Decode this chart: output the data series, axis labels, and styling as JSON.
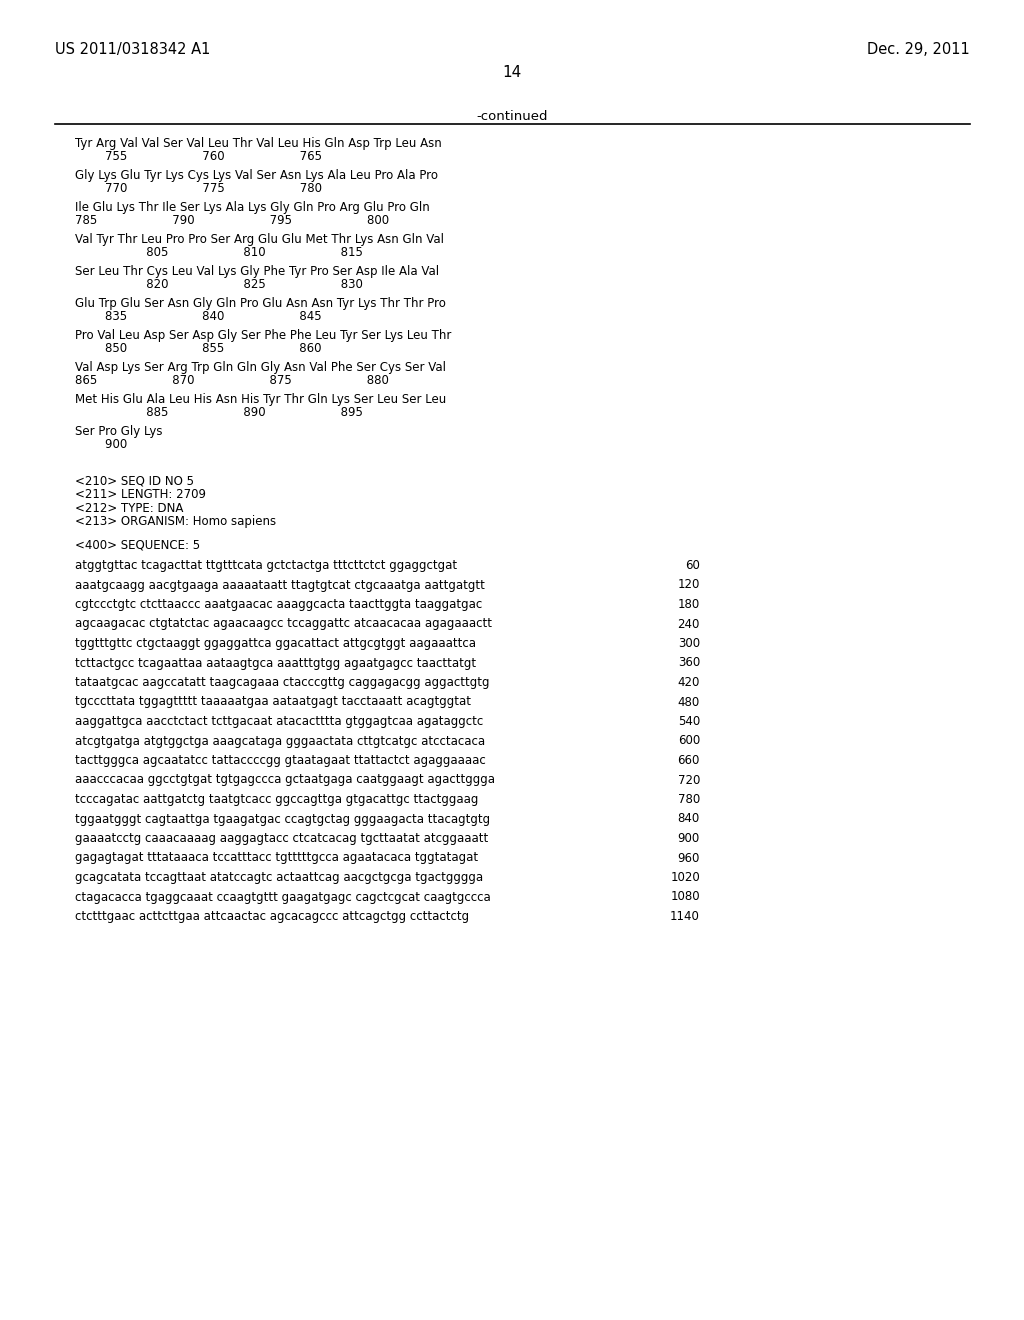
{
  "header_left": "US 2011/0318342 A1",
  "header_right": "Dec. 29, 2011",
  "page_number": "14",
  "continued_label": "-continued",
  "bg_color": "#ffffff",
  "text_color": "#000000",
  "amino_acid_blocks": [
    {
      "seq": "Tyr Arg Val Val Ser Val Leu Thr Val Leu His Gln Asp Trp Leu Asn",
      "num": "        755                    760                    765"
    },
    {
      "seq": "Gly Lys Glu Tyr Lys Cys Lys Val Ser Asn Lys Ala Leu Pro Ala Pro",
      "num": "        770                    775                    780"
    },
    {
      "seq": "Ile Glu Lys Thr Ile Ser Lys Ala Lys Gly Gln Pro Arg Glu Pro Gln",
      "num": "785                    790                    795                    800"
    },
    {
      "seq": "Val Tyr Thr Leu Pro Pro Ser Arg Glu Glu Met Thr Lys Asn Gln Val",
      "num": "                   805                    810                    815"
    },
    {
      "seq": "Ser Leu Thr Cys Leu Val Lys Gly Phe Tyr Pro Ser Asp Ile Ala Val",
      "num": "                   820                    825                    830"
    },
    {
      "seq": "Glu Trp Glu Ser Asn Gly Gln Pro Glu Asn Asn Tyr Lys Thr Thr Pro",
      "num": "        835                    840                    845"
    },
    {
      "seq": "Pro Val Leu Asp Ser Asp Gly Ser Phe Phe Leu Tyr Ser Lys Leu Thr",
      "num": "        850                    855                    860"
    },
    {
      "seq": "Val Asp Lys Ser Arg Trp Gln Gln Gly Asn Val Phe Ser Cys Ser Val",
      "num": "865                    870                    875                    880"
    },
    {
      "seq": "Met His Glu Ala Leu His Asn His Tyr Thr Gln Lys Ser Leu Ser Leu",
      "num": "                   885                    890                    895"
    },
    {
      "seq": "Ser Pro Gly Lys",
      "num": "        900"
    }
  ],
  "seq_info_lines": [
    "<210> SEQ ID NO 5",
    "<211> LENGTH: 2709",
    "<212> TYPE: DNA",
    "<213> ORGANISM: Homo sapiens"
  ],
  "seq_label": "<400> SEQUENCE: 5",
  "dna_lines": [
    [
      "atggtgttac tcagacttat ttgtttcata gctctactga tttcttctct ggaggctgat",
      "60"
    ],
    [
      "aaatgcaagg aacgtgaaga aaaaataatt ttagtgtcat ctgcaaatga aattgatgtt",
      "120"
    ],
    [
      "cgtccctgtc ctcttaaccc aaatgaacac aaaggcacta taacttggta taaggatgac",
      "180"
    ],
    [
      "agcaagacac ctgtatctac agaacaagcc tccaggattc atcaacacaa agagaaactt",
      "240"
    ],
    [
      "tggtttgttc ctgctaaggt ggaggattca ggacattact attgcgtggt aagaaattca",
      "300"
    ],
    [
      "tcttactgcc tcagaattaa aataagtgca aaatttgtgg agaatgagcc taacttatgt",
      "360"
    ],
    [
      "tataatgcac aagccatatt taagcagaaa ctacccgttg caggagacgg aggacttgtg",
      "420"
    ],
    [
      "tgcccttata tggagttttt taaaaatgaa aataatgagt tacctaaatt acagtggtat",
      "480"
    ],
    [
      "aaggattgca aacctctact tcttgacaat atacactttta gtggagtcaa agataggctc",
      "540"
    ],
    [
      "atcgtgatga atgtggctga aaagcataga gggaactata cttgtcatgc atcctacaca",
      "600"
    ],
    [
      "tacttgggca agcaatatcc tattaccccgg gtaatagaat ttattactct agaggaaaac",
      "660"
    ],
    [
      "aaacccacaa ggcctgtgat tgtgagccca gctaatgaga caatggaagt agacttggga",
      "720"
    ],
    [
      "tcccagatac aattgatctg taatgtcacc ggccagttga gtgacattgc ttactggaag",
      "780"
    ],
    [
      "tggaatgggt cagtaattga tgaagatgac ccagtgctag gggaagacta ttacagtgtg",
      "840"
    ],
    [
      "gaaaatcctg caaacaaaag aaggagtacc ctcatcacag tgcttaatat atcggaaatt",
      "900"
    ],
    [
      "gagagtagat tttataaaca tccatttacc tgtttttgcca agaatacaca tggtatagat",
      "960"
    ],
    [
      "gcagcatata tccagttaat atatccagtc actaattcag aacgctgcga tgactgggga",
      "1020"
    ],
    [
      "ctagacacca tgaggcaaat ccaagtgttt gaagatgagc cagctcgcat caagtgccca",
      "1080"
    ],
    [
      "ctctttgaac acttcttgaa attcaactac agcacagccc attcagctgg ccttactctg",
      "1140"
    ]
  ]
}
